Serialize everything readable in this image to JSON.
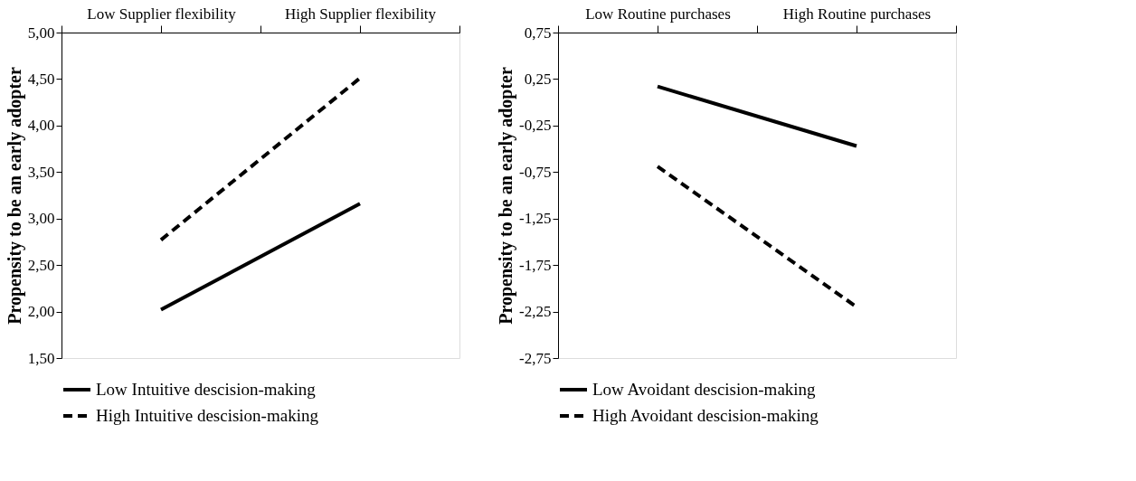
{
  "chart_data": [
    {
      "type": "line",
      "ylabel": "Propensity to be an early adopter",
      "categories": [
        "Low Supplier flexibility",
        "High Supplier flexibility"
      ],
      "ylim": [
        1.5,
        5.0
      ],
      "yticks": [
        {
          "value": 1.5,
          "label": "1,50"
        },
        {
          "value": 2.0,
          "label": "2,00"
        },
        {
          "value": 2.5,
          "label": "2,50"
        },
        {
          "value": 3.0,
          "label": "3,00"
        },
        {
          "value": 3.5,
          "label": "3,50"
        },
        {
          "value": 4.0,
          "label": "4,00"
        },
        {
          "value": 4.5,
          "label": "4,50"
        },
        {
          "value": 5.0,
          "label": "5,00"
        }
      ],
      "grid": false,
      "legend": "bottom",
      "series": [
        {
          "name": "Low Intuitive descision-making",
          "color": "#000000",
          "line_style": "solid",
          "values": [
            2.02,
            3.16
          ]
        },
        {
          "name": "High Intuitive descision-making",
          "color": "#000000",
          "line_style": "dashed",
          "values": [
            2.77,
            4.51
          ]
        }
      ]
    },
    {
      "type": "line",
      "ylabel": "Propensity to be an early adopter",
      "categories": [
        "Low Routine purchases",
        "High Routine purchases"
      ],
      "ylim": [
        -2.75,
        0.75
      ],
      "yticks": [
        {
          "value": -2.75,
          "label": "-2,75"
        },
        {
          "value": -2.25,
          "label": "-2,25"
        },
        {
          "value": -1.75,
          "label": "-1,75"
        },
        {
          "value": -1.25,
          "label": "-1,25"
        },
        {
          "value": -0.75,
          "label": "-0,75"
        },
        {
          "value": -0.25,
          "label": "-0,25"
        },
        {
          "value": 0.25,
          "label": "0,25"
        },
        {
          "value": 0.75,
          "label": "0,75"
        }
      ],
      "grid": false,
      "legend": "bottom",
      "series": [
        {
          "name": "Low Avoidant descision-making",
          "color": "#000000",
          "line_style": "solid",
          "values": [
            0.17,
            -0.47
          ]
        },
        {
          "name": "High Avoidant descision-making",
          "color": "#000000",
          "line_style": "dashed",
          "values": [
            -0.69,
            -2.2
          ]
        }
      ]
    }
  ]
}
